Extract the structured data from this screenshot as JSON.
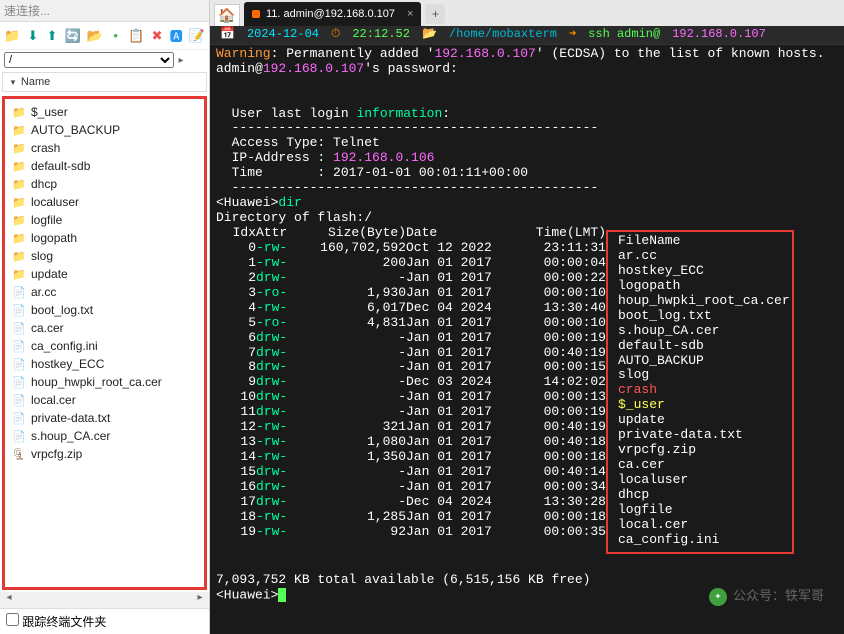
{
  "left": {
    "conn_placeholder": "速连接...",
    "toolbar_icons": [
      "📁",
      "⬇",
      "⬆",
      "🔄",
      "📂",
      "•",
      "📋",
      "✖",
      "🅰",
      "📝"
    ],
    "toolbar_colors": [
      "#f5a623",
      "#009688",
      "#009688",
      "#009688",
      "#009688",
      "#4caf50",
      "#ff9800",
      "#f05050",
      "#2196f3",
      "#607d8b"
    ],
    "path_value": "/",
    "name_header": "Name",
    "items": [
      {
        "type": "folder",
        "label": "$_user"
      },
      {
        "type": "folder",
        "label": "AUTO_BACKUP"
      },
      {
        "type": "folder",
        "label": "crash"
      },
      {
        "type": "folder",
        "label": "default-sdb"
      },
      {
        "type": "folder",
        "label": "dhcp"
      },
      {
        "type": "folder",
        "label": "localuser"
      },
      {
        "type": "folder",
        "label": "logfile"
      },
      {
        "type": "folder",
        "label": "logopath"
      },
      {
        "type": "folder",
        "label": "slog"
      },
      {
        "type": "folder",
        "label": "update"
      },
      {
        "type": "file",
        "label": "ar.cc"
      },
      {
        "type": "file",
        "label": "boot_log.txt"
      },
      {
        "type": "file",
        "label": "ca.cer"
      },
      {
        "type": "file",
        "label": "ca_config.ini"
      },
      {
        "type": "file",
        "label": "hostkey_ECC"
      },
      {
        "type": "file",
        "label": "houp_hwpki_root_ca.cer"
      },
      {
        "type": "file",
        "label": "local.cer"
      },
      {
        "type": "file",
        "label": "private-data.txt"
      },
      {
        "type": "file",
        "label": "s.houp_CA.cer"
      },
      {
        "type": "zip",
        "label": "vrpcfg.zip"
      }
    ],
    "follow_chk": "跟踪终端文件夹"
  },
  "tab": {
    "title": "11. admin@192.168.0.107"
  },
  "status": {
    "cal_icon": "📅",
    "date": "2024-12-04",
    "clock_icon": "⏱",
    "time": "22:12.52",
    "fold_icon": "📂",
    "path": "/home/mobaxterm",
    "arrow_icon": "➜",
    "ssh": "ssh admin@",
    "ip": "192.168.0.107"
  },
  "term": {
    "warn_label": "Warning",
    "warn_text": ": Permanently added '",
    "warn_ip": "192.168.0.107",
    "warn_tail": "' (ECDSA) to the list of known hosts.",
    "admin_at": "admin@",
    "admin_ip": "192.168.0.107",
    "pw_text": "'s password:",
    "login_pre": "User last login ",
    "login_info": "information",
    "login_colon": ":",
    "dash": "-----------------------------------------------",
    "access": "Access Type: Telnet",
    "ipaddr_label": "IP-Address : ",
    "ipaddr": "192.168.0.106",
    "time_label": "Time       : 2017-01-01 00:01:11+00:00",
    "prompt1": "<Huawei>",
    "cmd1": "dir",
    "dirof": "Directory of flash:/",
    "hdr": {
      "idx": "Idx",
      "attr": "Attr",
      "size": "Size(Byte)",
      "date": "Date",
      "time": "Time(LMT)",
      "fname": "FileName"
    },
    "rows": [
      {
        "idx": "0",
        "attr": "-rw-",
        "size": "160,702,592",
        "date": "Oct 12 2022",
        "time": "23:11:31",
        "f": "ar.cc",
        "cls": ""
      },
      {
        "idx": "1",
        "attr": "-rw-",
        "size": "200",
        "date": "Jan 01 2017",
        "time": "00:00:04",
        "f": "hostkey_ECC",
        "cls": ""
      },
      {
        "idx": "2",
        "attr": "drw-",
        "size": "-",
        "date": "Jan 01 2017",
        "time": "00:00:22",
        "f": "logopath",
        "cls": ""
      },
      {
        "idx": "3",
        "attr": "-ro-",
        "size": "1,930",
        "date": "Jan 01 2017",
        "time": "00:00:10",
        "f": "houp_hwpki_root_ca.cer",
        "cls": ""
      },
      {
        "idx": "4",
        "attr": "-rw-",
        "size": "6,017",
        "date": "Dec 04 2024",
        "time": "13:30:40",
        "f": "boot_log.txt",
        "cls": ""
      },
      {
        "idx": "5",
        "attr": "-ro-",
        "size": "4,831",
        "date": "Jan 01 2017",
        "time": "00:00:10",
        "f": "s.houp_CA.cer",
        "cls": ""
      },
      {
        "idx": "6",
        "attr": "drw-",
        "size": "-",
        "date": "Jan 01 2017",
        "time": "00:00:19",
        "f": "default-sdb",
        "cls": ""
      },
      {
        "idx": "7",
        "attr": "drw-",
        "size": "-",
        "date": "Jan 01 2017",
        "time": "00:40:19",
        "f": "AUTO_BACKUP",
        "cls": ""
      },
      {
        "idx": "8",
        "attr": "drw-",
        "size": "-",
        "date": "Jan 01 2017",
        "time": "00:00:15",
        "f": "slog",
        "cls": ""
      },
      {
        "idx": "9",
        "attr": "drw-",
        "size": "-",
        "date": "Dec 03 2024",
        "time": "14:02:02",
        "f": "crash",
        "cls": "c-red"
      },
      {
        "idx": "10",
        "attr": "drw-",
        "size": "-",
        "date": "Jan 01 2017",
        "time": "00:00:13",
        "f": "$_user",
        "cls": "c-y"
      },
      {
        "idx": "11",
        "attr": "drw-",
        "size": "-",
        "date": "Jan 01 2017",
        "time": "00:00:19",
        "f": "update",
        "cls": ""
      },
      {
        "idx": "12",
        "attr": "-rw-",
        "size": "321",
        "date": "Jan 01 2017",
        "time": "00:40:19",
        "f": "private-data.txt",
        "cls": ""
      },
      {
        "idx": "13",
        "attr": "-rw-",
        "size": "1,080",
        "date": "Jan 01 2017",
        "time": "00:40:18",
        "f": "vrpcfg.zip",
        "cls": ""
      },
      {
        "idx": "14",
        "attr": "-rw-",
        "size": "1,350",
        "date": "Jan 01 2017",
        "time": "00:00:18",
        "f": "ca.cer",
        "cls": ""
      },
      {
        "idx": "15",
        "attr": "drw-",
        "size": "-",
        "date": "Jan 01 2017",
        "time": "00:40:14",
        "f": "localuser",
        "cls": ""
      },
      {
        "idx": "16",
        "attr": "drw-",
        "size": "-",
        "date": "Jan 01 2017",
        "time": "00:00:34",
        "f": "dhcp",
        "cls": ""
      },
      {
        "idx": "17",
        "attr": "drw-",
        "size": "-",
        "date": "Dec 04 2024",
        "time": "13:30:28",
        "f": "logfile",
        "cls": ""
      },
      {
        "idx": "18",
        "attr": "-rw-",
        "size": "1,285",
        "date": "Jan 01 2017",
        "time": "00:00:18",
        "f": "local.cer",
        "cls": ""
      },
      {
        "idx": "19",
        "attr": "-rw-",
        "size": "92",
        "date": "Jan 01 2017",
        "time": "00:00:35",
        "f": "ca_config.ini",
        "cls": ""
      }
    ],
    "summary": "7,093,752 KB total available (6,515,156 KB free)",
    "prompt2": "<Huawei>",
    "watermark": "公众号：铁军哥"
  }
}
